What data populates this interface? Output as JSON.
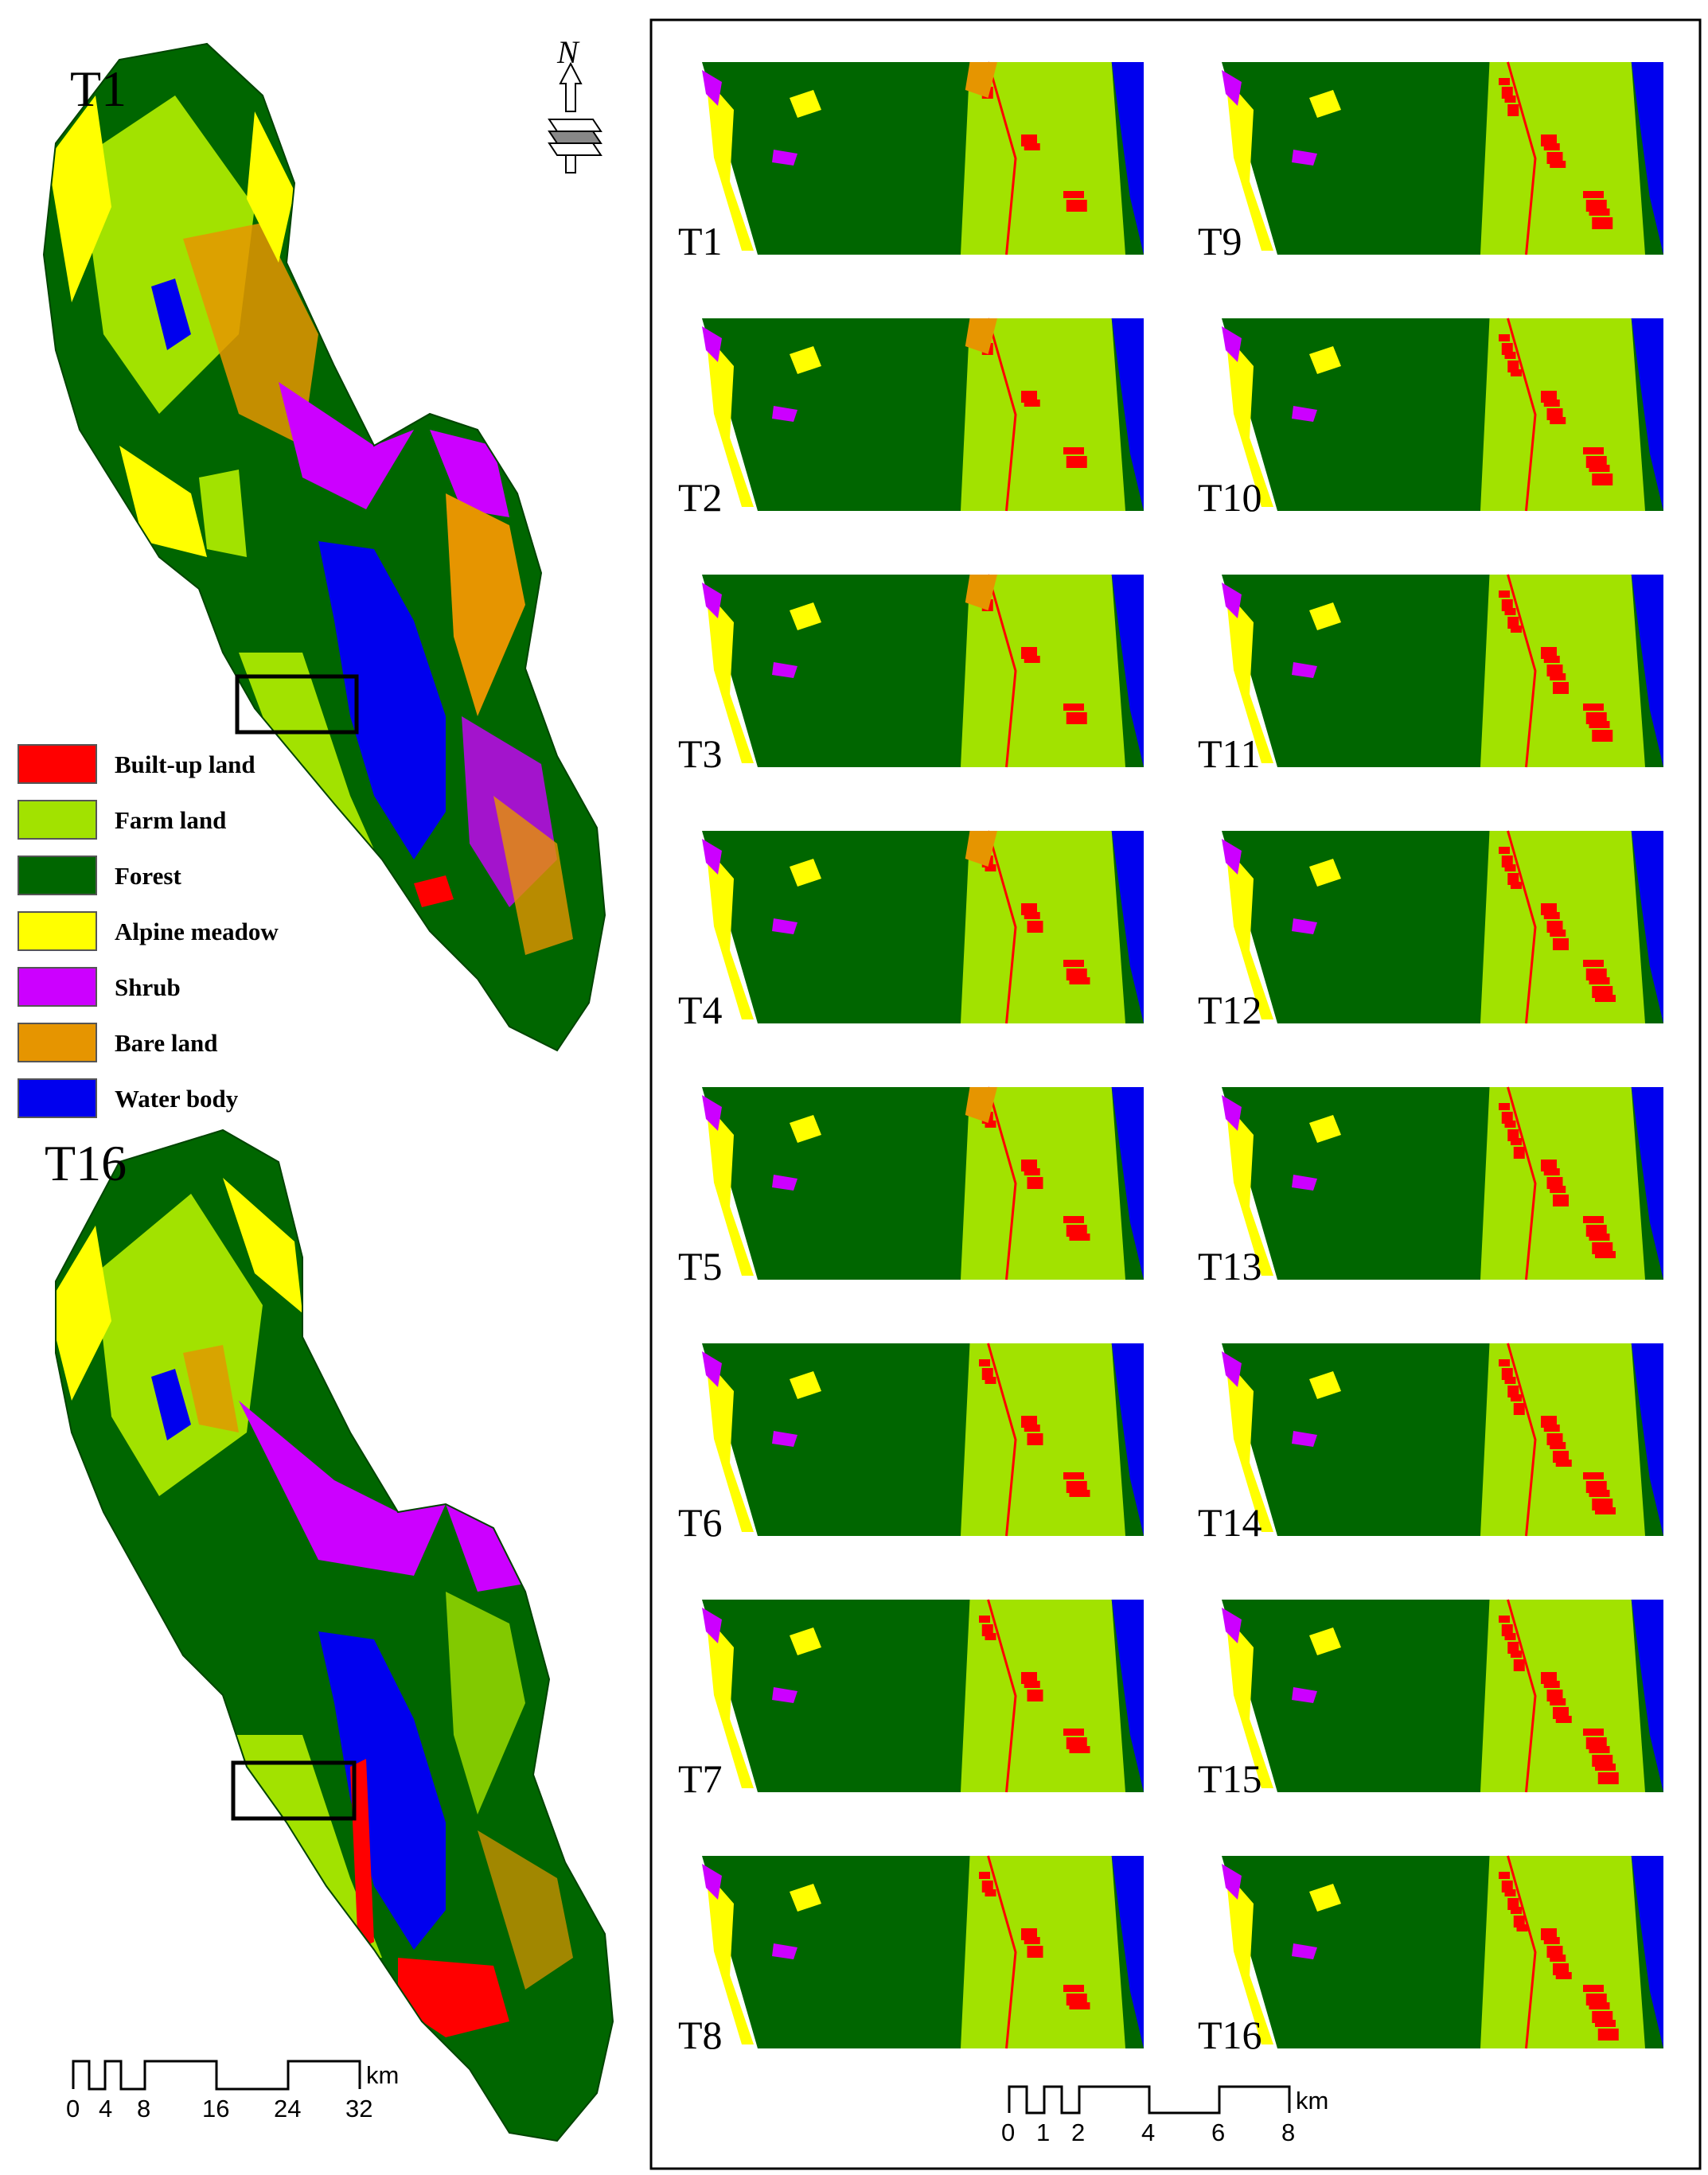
{
  "legend": {
    "items": [
      {
        "label": "Built-up land",
        "color": "#ff0000"
      },
      {
        "label": "Farm land",
        "color": "#a2e200"
      },
      {
        "label": "Forest",
        "color": "#006600"
      },
      {
        "label": "Alpine meadow",
        "color": "#ffff00"
      },
      {
        "label": "Shrub",
        "color": "#cc00ff"
      },
      {
        "label": "Bare land",
        "color": "#e69500"
      },
      {
        "label": "Water body",
        "color": "#0000ee"
      }
    ]
  },
  "overview_maps": {
    "top_label": "T1",
    "bottom_label": "T16"
  },
  "north_arrow": {
    "label": "N"
  },
  "scale_left": {
    "unit": "km",
    "ticks": [
      "0",
      "4",
      "8",
      "16",
      "24",
      "32"
    ]
  },
  "scale_right": {
    "unit": "km",
    "ticks": [
      "0",
      "1",
      "2",
      "4",
      "6",
      "8"
    ]
  },
  "panels": {
    "left_column": [
      "T1",
      "T2",
      "T3",
      "T4",
      "T5",
      "T6",
      "T7",
      "T8"
    ],
    "right_column": [
      "T9",
      "T10",
      "T11",
      "T12",
      "T13",
      "T14",
      "T15",
      "T16"
    ]
  }
}
